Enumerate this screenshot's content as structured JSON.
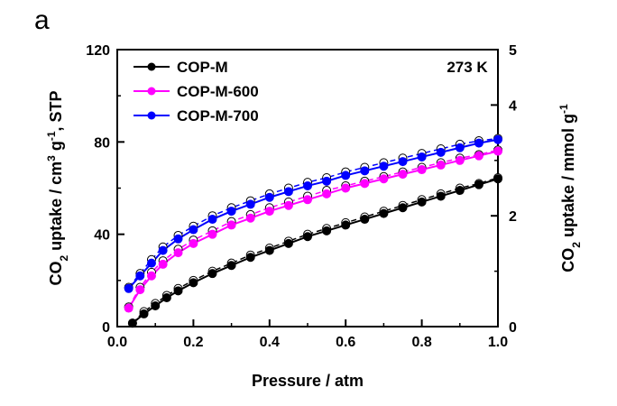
{
  "panel_label": "a",
  "chart_data": {
    "type": "line",
    "title": "",
    "annotation": "273 K",
    "xlabel": "Pressure / atm",
    "ylabel_left": "CO2 uptake / cm3 g-1, STP",
    "ylabel_right": "CO2 uptake / mmol g-1",
    "xlim": [
      0.0,
      1.0
    ],
    "ylim_left": [
      0,
      120
    ],
    "ylim_right": [
      0,
      5
    ],
    "xticks": [
      "0.0",
      "0.2",
      "0.4",
      "0.6",
      "0.8",
      "1.0"
    ],
    "yticks_left": [
      "0",
      "40",
      "80",
      "120"
    ],
    "yticks_right": [
      "0",
      "2",
      "4",
      "5"
    ],
    "legend_position": "top-left",
    "grid": false,
    "series": [
      {
        "name": "COP-M",
        "color": "#000000",
        "x": [
          0.04,
          0.07,
          0.1,
          0.13,
          0.16,
          0.2,
          0.25,
          0.3,
          0.35,
          0.4,
          0.45,
          0.5,
          0.55,
          0.6,
          0.65,
          0.7,
          0.75,
          0.8,
          0.85,
          0.9,
          0.95,
          1.0
        ],
        "adsorption": [
          1.5,
          5.5,
          9.0,
          12.5,
          15.5,
          19.0,
          23.0,
          26.5,
          30.0,
          33.0,
          36.0,
          39.0,
          41.5,
          44.0,
          46.5,
          49.0,
          51.5,
          54.0,
          56.5,
          59.0,
          61.5,
          64.0
        ],
        "desorption": [
          1.5,
          6.5,
          10.0,
          13.5,
          16.5,
          20.0,
          24.0,
          27.5,
          31.0,
          34.0,
          37.0,
          40.0,
          42.5,
          45.0,
          47.5,
          50.0,
          52.5,
          55.0,
          57.5,
          60.0,
          62.0,
          64.5
        ]
      },
      {
        "name": "COP-M-600",
        "color": "#ff00ff",
        "x": [
          0.03,
          0.06,
          0.09,
          0.12,
          0.16,
          0.2,
          0.25,
          0.3,
          0.35,
          0.4,
          0.45,
          0.5,
          0.55,
          0.6,
          0.65,
          0.7,
          0.75,
          0.8,
          0.85,
          0.9,
          0.95,
          1.0
        ],
        "adsorption": [
          8.0,
          16.0,
          22.0,
          27.0,
          32.0,
          36.0,
          40.0,
          44.0,
          47.0,
          50.0,
          52.5,
          55.0,
          57.5,
          60.0,
          62.0,
          64.0,
          66.0,
          68.0,
          70.0,
          72.0,
          74.0,
          76.0
        ],
        "desorption": [
          8.5,
          17.0,
          23.5,
          28.5,
          33.5,
          37.5,
          41.5,
          45.5,
          48.5,
          51.5,
          54.0,
          56.5,
          59.0,
          61.0,
          63.0,
          65.0,
          67.0,
          69.0,
          71.0,
          73.0,
          74.5,
          76.5
        ]
      },
      {
        "name": "COP-M-700",
        "color": "#0000ff",
        "x": [
          0.03,
          0.06,
          0.09,
          0.12,
          0.16,
          0.2,
          0.25,
          0.3,
          0.35,
          0.4,
          0.45,
          0.5,
          0.55,
          0.6,
          0.65,
          0.7,
          0.75,
          0.8,
          0.85,
          0.9,
          0.95,
          1.0
        ],
        "adsorption": [
          16.5,
          22.0,
          27.5,
          33.0,
          38.0,
          42.0,
          46.5,
          50.0,
          53.0,
          56.0,
          58.5,
          61.0,
          63.0,
          65.5,
          67.5,
          69.5,
          71.5,
          73.5,
          75.5,
          77.5,
          79.5,
          81.0
        ],
        "desorption": [
          17.0,
          23.0,
          29.0,
          34.5,
          39.5,
          43.5,
          48.0,
          51.5,
          54.5,
          57.5,
          60.0,
          62.5,
          64.5,
          67.0,
          69.0,
          71.0,
          73.0,
          75.0,
          77.0,
          79.0,
          80.5,
          81.5
        ]
      }
    ]
  }
}
